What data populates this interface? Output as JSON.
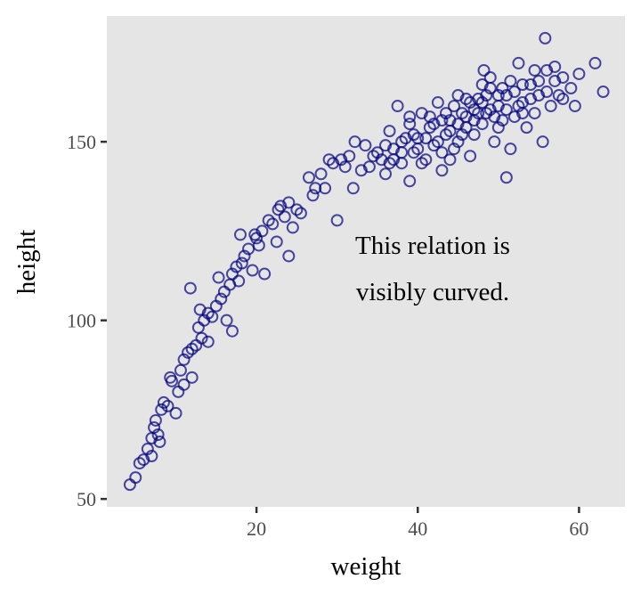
{
  "chart_data": {
    "type": "scatter",
    "xlabel": "weight",
    "ylabel": "height",
    "xlim": [
      1.44,
      65.7
    ],
    "ylim": [
      47.8,
      185.2
    ],
    "x_ticks": [
      20,
      40,
      60
    ],
    "y_ticks": [
      50,
      100,
      150
    ],
    "x_tick_labels": [
      "20",
      "40",
      "60"
    ],
    "y_tick_labels": [
      "50",
      "100",
      "150"
    ],
    "grid": false,
    "panel_background": "#e5e5e5",
    "marker": "open-circle",
    "point_color": "#000080",
    "annotation": {
      "lines": [
        "This relation is",
        "visibly curved."
      ],
      "x": 41.5,
      "y": 114.6
    },
    "points": [
      [
        4.3,
        54
      ],
      [
        5,
        56
      ],
      [
        5.5,
        60
      ],
      [
        6,
        61
      ],
      [
        6.5,
        64
      ],
      [
        7,
        62
      ],
      [
        7,
        67
      ],
      [
        7.3,
        70
      ],
      [
        7.5,
        72
      ],
      [
        7.8,
        68
      ],
      [
        8,
        66
      ],
      [
        8.2,
        75
      ],
      [
        8.5,
        77
      ],
      [
        9,
        76
      ],
      [
        9.3,
        84
      ],
      [
        9.5,
        83
      ],
      [
        10,
        74
      ],
      [
        10.3,
        80
      ],
      [
        10.6,
        86
      ],
      [
        11,
        82
      ],
      [
        11,
        89
      ],
      [
        11.5,
        91
      ],
      [
        11.8,
        109
      ],
      [
        12,
        84
      ],
      [
        12,
        92
      ],
      [
        12.5,
        93
      ],
      [
        12.8,
        98
      ],
      [
        13,
        103
      ],
      [
        13.2,
        95
      ],
      [
        13.5,
        100
      ],
      [
        14,
        102
      ],
      [
        14,
        94
      ],
      [
        14.5,
        101
      ],
      [
        15,
        104
      ],
      [
        15.3,
        112
      ],
      [
        15.6,
        106
      ],
      [
        16,
        108
      ],
      [
        16.3,
        100
      ],
      [
        16.7,
        110
      ],
      [
        17,
        113
      ],
      [
        17,
        97
      ],
      [
        17.5,
        115
      ],
      [
        17.8,
        111
      ],
      [
        18,
        124
      ],
      [
        18.2,
        116
      ],
      [
        18.5,
        118
      ],
      [
        19,
        120
      ],
      [
        19.5,
        114
      ],
      [
        19.8,
        124
      ],
      [
        20,
        123
      ],
      [
        20.3,
        121
      ],
      [
        20.7,
        125
      ],
      [
        21,
        113
      ],
      [
        21.5,
        128
      ],
      [
        22,
        127
      ],
      [
        22.5,
        122
      ],
      [
        22.7,
        131
      ],
      [
        23,
        132
      ],
      [
        23.5,
        129
      ],
      [
        24,
        133
      ],
      [
        24,
        118
      ],
      [
        24.5,
        126
      ],
      [
        25,
        131
      ],
      [
        25.5,
        130
      ],
      [
        26.5,
        140
      ],
      [
        27,
        135
      ],
      [
        27.3,
        137
      ],
      [
        28,
        141
      ],
      [
        28.5,
        137
      ],
      [
        29,
        145
      ],
      [
        29.5,
        144
      ],
      [
        30,
        128
      ],
      [
        30.5,
        145
      ],
      [
        31,
        143
      ],
      [
        31.5,
        146
      ],
      [
        32,
        137
      ],
      [
        32.2,
        150
      ],
      [
        33,
        142
      ],
      [
        33.5,
        149
      ],
      [
        34,
        143
      ],
      [
        35,
        147
      ],
      [
        35.5,
        145
      ],
      [
        36,
        141
      ],
      [
        36.5,
        153
      ],
      [
        37,
        148
      ],
      [
        37.5,
        160
      ],
      [
        38,
        144
      ],
      [
        38.5,
        151
      ],
      [
        39,
        139
      ],
      [
        39,
        155
      ],
      [
        39.5,
        147
      ],
      [
        40,
        151
      ],
      [
        40.5,
        158
      ],
      [
        41,
        145
      ],
      [
        41.5,
        154
      ],
      [
        42,
        149
      ],
      [
        42.5,
        161
      ],
      [
        43,
        142
      ],
      [
        43.5,
        152
      ],
      [
        44,
        156
      ],
      [
        44.5,
        148
      ],
      [
        45,
        163
      ],
      [
        45.5,
        152
      ],
      [
        46,
        157
      ],
      [
        46.5,
        146
      ],
      [
        47,
        159
      ],
      [
        47.5,
        162
      ],
      [
        48,
        155
      ],
      [
        48.2,
        170
      ],
      [
        48.5,
        158
      ],
      [
        49,
        165
      ],
      [
        49.5,
        150
      ],
      [
        50,
        160
      ],
      [
        50.5,
        156
      ],
      [
        51,
        163
      ],
      [
        51,
        140
      ],
      [
        51.5,
        148
      ],
      [
        52,
        157
      ],
      [
        52.5,
        172
      ],
      [
        53,
        161
      ],
      [
        53.5,
        154
      ],
      [
        54,
        166
      ],
      [
        54.5,
        158
      ],
      [
        55,
        163
      ],
      [
        55.5,
        150
      ],
      [
        55.8,
        179
      ],
      [
        56,
        170
      ],
      [
        56.5,
        160
      ],
      [
        57,
        167
      ],
      [
        57.5,
        163
      ],
      [
        58,
        168
      ],
      [
        59,
        165
      ],
      [
        59.5,
        160
      ],
      [
        60,
        169
      ],
      [
        62,
        172
      ],
      [
        63,
        164
      ],
      [
        34.5,
        146
      ],
      [
        36,
        149
      ],
      [
        37,
        145
      ],
      [
        38,
        150
      ],
      [
        39.5,
        152
      ],
      [
        40,
        148
      ],
      [
        41,
        151
      ],
      [
        42,
        155
      ],
      [
        42.5,
        150
      ],
      [
        43,
        156
      ],
      [
        43.5,
        158
      ],
      [
        44,
        153
      ],
      [
        44.5,
        160
      ],
      [
        45,
        155
      ],
      [
        45.5,
        158
      ],
      [
        46,
        154
      ],
      [
        46.5,
        161
      ],
      [
        47,
        156
      ],
      [
        47.5,
        158
      ],
      [
        48,
        161
      ],
      [
        48.5,
        163
      ],
      [
        49,
        159
      ],
      [
        49.5,
        157
      ],
      [
        50,
        163
      ],
      [
        50.5,
        165
      ],
      [
        51,
        159
      ],
      [
        52,
        164
      ],
      [
        52.5,
        160
      ],
      [
        53,
        166
      ],
      [
        54,
        162
      ],
      [
        55,
        167
      ],
      [
        56,
        164
      ],
      [
        57,
        171
      ],
      [
        58,
        162
      ],
      [
        40.5,
        144
      ],
      [
        43,
        147
      ],
      [
        45,
        150
      ],
      [
        47,
        152
      ],
      [
        41.5,
        157
      ],
      [
        46,
        162
      ],
      [
        48,
        166
      ],
      [
        50,
        154
      ],
      [
        53,
        158
      ],
      [
        54.5,
        170
      ],
      [
        44,
        145
      ],
      [
        38,
        147
      ],
      [
        36.5,
        144
      ],
      [
        39,
        157
      ],
      [
        49,
        168
      ],
      [
        51.5,
        167
      ]
    ]
  }
}
